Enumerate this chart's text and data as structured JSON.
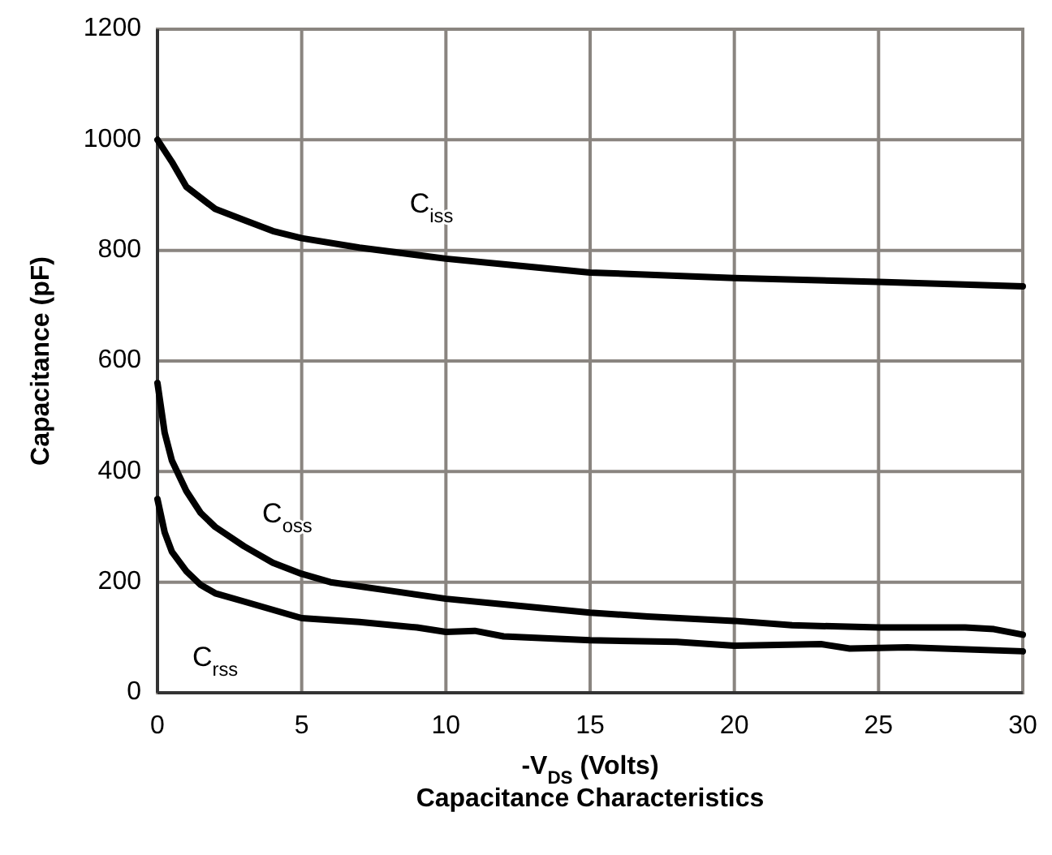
{
  "chart_data": {
    "type": "line",
    "title": "Capacitance Characteristics",
    "xlabel": "-V$_{DS}$ (Volts)",
    "ylabel": "Capacitance (pF)",
    "xlim": [
      0,
      30
    ],
    "xticks": [
      0,
      5,
      10,
      15,
      20,
      25,
      30
    ],
    "ylim": [
      0,
      1200
    ],
    "yticks": [
      0,
      200,
      400,
      600,
      800,
      1000,
      1200
    ],
    "grid": true,
    "marker": "none",
    "line_style": "solid",
    "series": [
      {
        "name": "C$_{iss}$",
        "color": "#000000",
        "x": [
          0,
          0.5,
          1,
          2,
          3,
          4,
          5,
          7,
          10,
          12,
          15,
          20,
          25,
          30
        ],
        "values": [
          1000,
          960,
          915,
          875,
          855,
          835,
          822,
          805,
          785,
          775,
          760,
          750,
          743,
          735
        ]
      },
      {
        "name": "C$_{oss}$",
        "color": "#000000",
        "x": [
          0,
          0.25,
          0.5,
          1,
          1.5,
          2,
          3,
          4,
          5,
          6,
          8,
          10,
          12,
          15,
          17,
          20,
          22,
          25,
          28,
          29,
          30
        ],
        "values": [
          560,
          470,
          420,
          365,
          325,
          300,
          265,
          235,
          215,
          200,
          185,
          170,
          160,
          145,
          138,
          130,
          122,
          118,
          118,
          115,
          105
        ]
      },
      {
        "name": "C$_{rss}$",
        "color": "#000000",
        "x": [
          0,
          0.25,
          0.5,
          1,
          1.5,
          2,
          3,
          4,
          5,
          7,
          9,
          10,
          11,
          12,
          15,
          18,
          20,
          23,
          24,
          26,
          30
        ],
        "values": [
          350,
          290,
          255,
          220,
          195,
          180,
          165,
          150,
          135,
          128,
          118,
          110,
          112,
          102,
          95,
          92,
          85,
          88,
          80,
          82,
          75
        ]
      }
    ]
  }
}
